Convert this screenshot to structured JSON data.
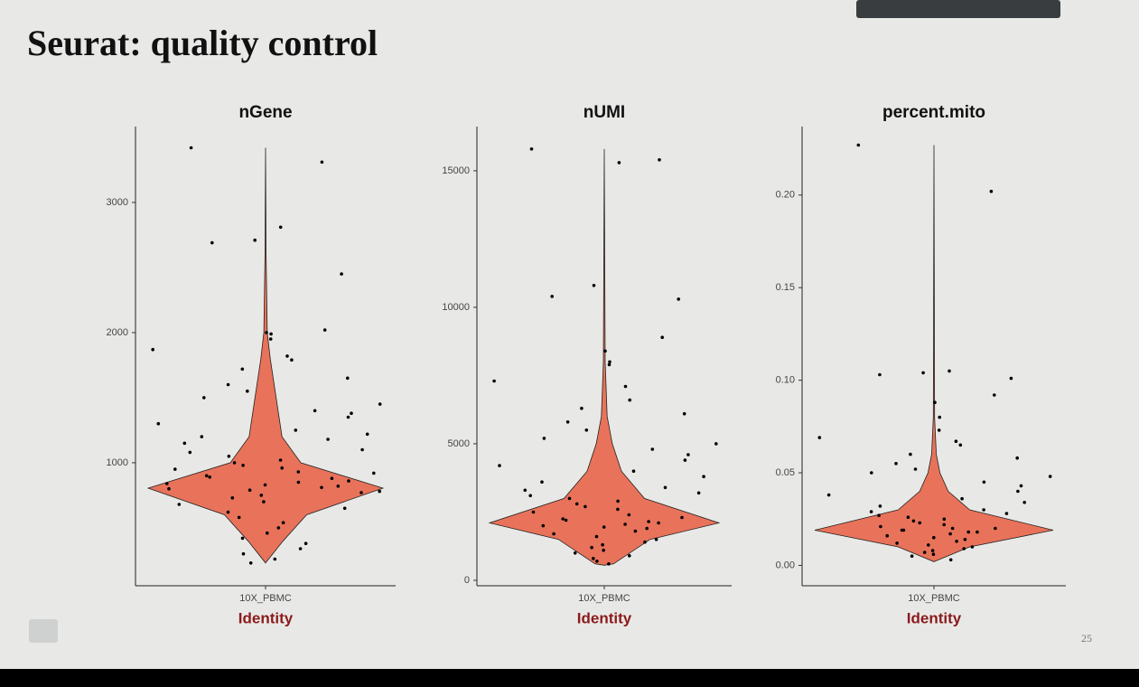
{
  "title": "Seurat: quality control",
  "page_number": "25",
  "chart_data": [
    {
      "type": "violin",
      "title": "nGene",
      "categories": [
        "10X_PBMC"
      ],
      "xlabel": "Identity",
      "ylim": [
        55,
        3583
      ],
      "yticks": [
        1000,
        2000,
        3000
      ],
      "color": "#e8735a",
      "point_color": "#000000",
      "violin": {
        "y": [
          230,
          400,
          600,
          805,
          1000,
          1200,
          1500,
          1800,
          2000,
          2600,
          3420
        ],
        "density": [
          0,
          0.15,
          0.35,
          1.0,
          0.3,
          0.14,
          0.09,
          0.04,
          0.015,
          0.005,
          0
        ]
      },
      "values": [
        3420,
        3310,
        2810,
        2710,
        2690,
        2450,
        2020,
        2000,
        1990,
        1950,
        1870,
        1820,
        1790,
        1720,
        1650,
        1600,
        1550,
        1500,
        1450,
        1400,
        1380,
        1350,
        1300,
        1250,
        1220,
        1200,
        1180,
        1150,
        1100,
        1080,
        1050,
        1020,
        1000,
        980,
        960,
        950,
        930,
        920,
        900,
        890,
        880,
        860,
        850,
        840,
        830,
        820,
        810,
        800,
        790,
        780,
        770,
        750,
        730,
        700,
        680,
        650,
        620,
        580,
        540,
        500,
        460,
        420,
        380,
        340,
        300,
        260,
        230
      ]
    },
    {
      "type": "violin",
      "title": "nUMI",
      "categories": [
        "10X_PBMC"
      ],
      "xlabel": "Identity",
      "ylim": [
        -200,
        16620
      ],
      "yticks": [
        0,
        5000,
        10000,
        15000
      ],
      "color": "#e8735a",
      "point_color": "#000000",
      "violin": {
        "y": [
          550,
          600,
          1500,
          2100,
          3000,
          4000,
          5000,
          6000,
          8000,
          15800
        ],
        "density": [
          0,
          0.08,
          0.4,
          1.0,
          0.35,
          0.15,
          0.07,
          0.025,
          0.008,
          0
        ]
      },
      "values": [
        15800,
        15400,
        15300,
        10800,
        10400,
        10300,
        8900,
        8400,
        8000,
        7900,
        7300,
        7100,
        6600,
        6300,
        6100,
        5800,
        5500,
        5200,
        5000,
        4800,
        4600,
        4400,
        4200,
        4000,
        3800,
        3600,
        3400,
        3300,
        3200,
        3100,
        3000,
        2900,
        2800,
        2700,
        2600,
        2500,
        2400,
        2300,
        2250,
        2200,
        2150,
        2100,
        2050,
        2000,
        1950,
        1900,
        1800,
        1700,
        1600,
        1500,
        1400,
        1300,
        1200,
        1100,
        1000,
        900,
        800,
        700,
        600
      ]
    },
    {
      "type": "violin",
      "title": "percent.mito",
      "categories": [
        "10X_PBMC"
      ],
      "xlabel": "Identity",
      "ylim": [
        -0.011,
        0.237
      ],
      "yticks": [
        {
          "value": 0,
          "label": "0.00"
        },
        0.05,
        {
          "value": 0.1,
          "label": "0.10"
        },
        0.15,
        {
          "value": 0.2,
          "label": "0.20"
        }
      ],
      "color": "#e8735a",
      "point_color": "#000000",
      "violin": {
        "y": [
          0.002,
          0.01,
          0.019,
          0.03,
          0.04,
          0.05,
          0.06,
          0.08,
          0.227
        ],
        "density": [
          0,
          0.3,
          1.0,
          0.3,
          0.12,
          0.05,
          0.02,
          0.005,
          0
        ]
      },
      "values": [
        0.227,
        0.202,
        0.105,
        0.104,
        0.103,
        0.101,
        0.092,
        0.088,
        0.08,
        0.073,
        0.069,
        0.067,
        0.065,
        0.06,
        0.058,
        0.055,
        0.052,
        0.05,
        0.048,
        0.045,
        0.043,
        0.04,
        0.038,
        0.036,
        0.034,
        0.032,
        0.03,
        0.029,
        0.028,
        0.027,
        0.026,
        0.025,
        0.024,
        0.023,
        0.022,
        0.021,
        0.02,
        0.02,
        0.019,
        0.019,
        0.018,
        0.018,
        0.017,
        0.016,
        0.015,
        0.014,
        0.013,
        0.012,
        0.011,
        0.01,
        0.009,
        0.008,
        0.007,
        0.006,
        0.005,
        0.003
      ]
    }
  ]
}
